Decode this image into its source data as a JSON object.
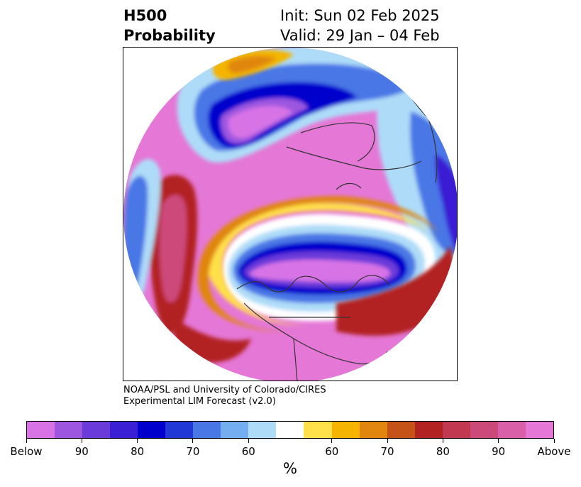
{
  "title": {
    "left_line1": "H500",
    "left_line2": "Probability",
    "right_line1": "Init: Sun 02 Feb 2025",
    "right_line2": "Valid: 29 Jan – 04 Feb"
  },
  "credit": {
    "line1": "NOAA/PSL and University of Colorado/CIRES",
    "line2": "Experimental LIM Forecast (v2.0)"
  },
  "colorbar": {
    "unit": "%",
    "colors": [
      "#d873e6",
      "#9d56e0",
      "#6b3bd9",
      "#3a1fd4",
      "#0000cc",
      "#2238d6",
      "#4a77e6",
      "#74aef0",
      "#aedcf8",
      "#ffffff",
      "#ffe04a",
      "#f4b400",
      "#e0860e",
      "#c55318",
      "#b22222",
      "#c23850",
      "#cc4a7a",
      "#d85fa8",
      "#e577d6"
    ],
    "ticks": [
      {
        "label": "Below",
        "index": 0
      },
      {
        "label": "90",
        "index": 2
      },
      {
        "label": "80",
        "index": 4
      },
      {
        "label": "70",
        "index": 6
      },
      {
        "label": "60",
        "index": 8
      },
      {
        "label": "60",
        "index": 11
      },
      {
        "label": "70",
        "index": 13
      },
      {
        "label": "80",
        "index": 15
      },
      {
        "label": "90",
        "index": 17
      },
      {
        "label": "Above",
        "index": 19
      }
    ]
  },
  "map": {
    "projection": "north-polar-stereographic",
    "field": "H500 probability",
    "colors": {
      "above_max": "#e577d6",
      "above_high": "#cc4a7a",
      "above_mid": "#b22222",
      "above_low": "#e0860e",
      "above_min": "#ffe04a",
      "below_max": "#d873e6",
      "below_high": "#6b3bd9",
      "below_mid": "#0000cc",
      "below_low": "#4a77e6",
      "below_min": "#aedcf8",
      "coastline": "#333333"
    }
  }
}
